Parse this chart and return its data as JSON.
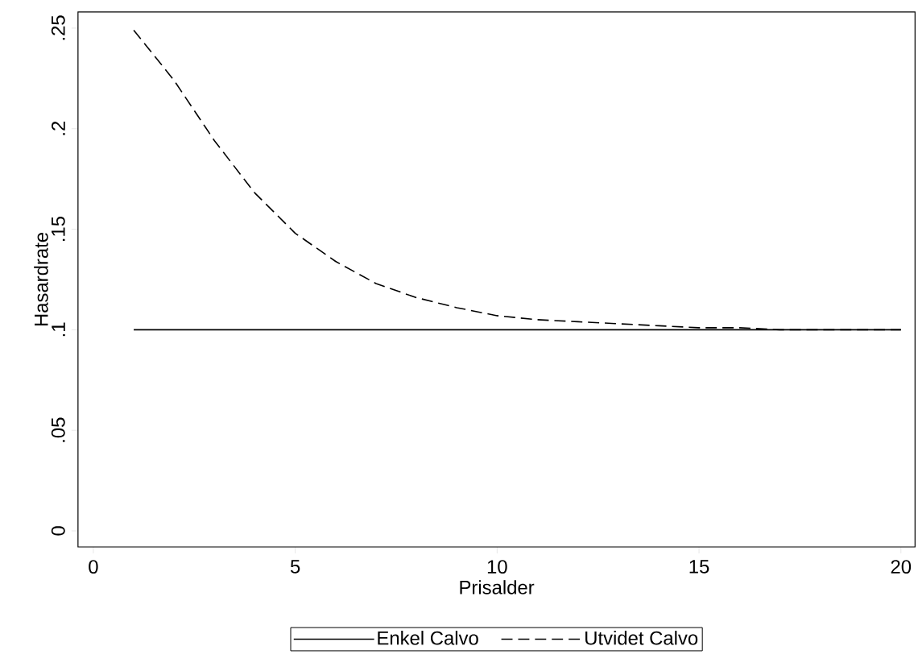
{
  "chart_data": {
    "type": "line",
    "xlabel": "Prisalder",
    "ylabel": "Hasardrate",
    "x": [
      1,
      2,
      3,
      4,
      5,
      6,
      7,
      8,
      9,
      10,
      11,
      12,
      13,
      14,
      15,
      16,
      17,
      18,
      19,
      20
    ],
    "series": [
      {
        "name": "Enkel Calvo",
        "color": "#000000",
        "line_style": "solid",
        "values": [
          0.1,
          0.1,
          0.1,
          0.1,
          0.1,
          0.1,
          0.1,
          0.1,
          0.1,
          0.1,
          0.1,
          0.1,
          0.1,
          0.1,
          0.1,
          0.1,
          0.1,
          0.1,
          0.1,
          0.1
        ]
      },
      {
        "name": "Utvidet Calvo",
        "color": "#000000",
        "line_style": "dashed",
        "values": [
          0.249,
          0.224,
          0.194,
          0.168,
          0.148,
          0.134,
          0.123,
          0.116,
          0.111,
          0.107,
          0.105,
          0.104,
          0.103,
          0.102,
          0.101,
          0.101,
          0.1,
          0.1,
          0.1,
          0.1
        ]
      }
    ],
    "xlim": [
      -0.38,
      20.35
    ],
    "ylim": [
      -0.008,
      0.258
    ],
    "xticks": [
      0,
      5,
      10,
      15,
      20
    ],
    "yticks": [
      {
        "value": 0,
        "label": "0"
      },
      {
        "value": 0.05,
        "label": ".05"
      },
      {
        "value": 0.1,
        "label": ".1"
      },
      {
        "value": 0.15,
        "label": ".15"
      },
      {
        "value": 0.2,
        "label": ".2"
      },
      {
        "value": 0.25,
        "label": ".25"
      }
    ],
    "grid": false,
    "legend": "bottom",
    "marker": "none"
  }
}
